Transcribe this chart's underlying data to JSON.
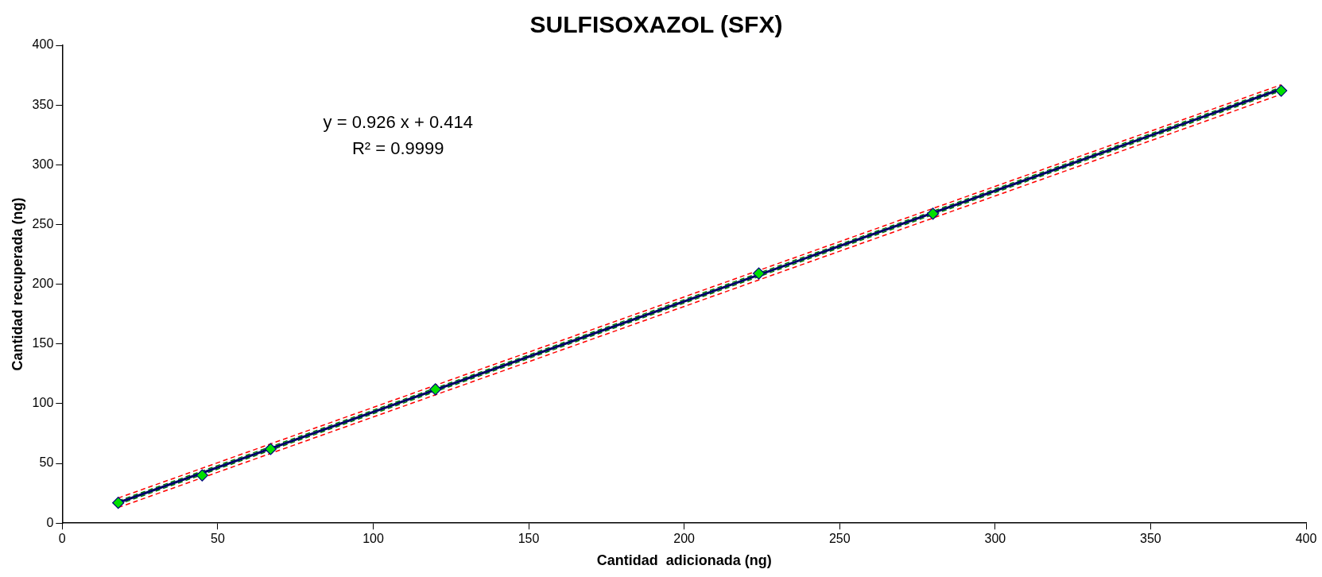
{
  "chart_data": {
    "type": "scatter",
    "title": "SULFISOXAZOL (SFX)",
    "xlabel": "Cantidad  adicionada (ng)",
    "ylabel": "Cantidad recuperada (ng)",
    "xlim": [
      0,
      400
    ],
    "xticks": [
      0,
      50,
      100,
      150,
      200,
      250,
      300,
      350,
      400
    ],
    "ylim": [
      0,
      400
    ],
    "yticks": [
      0,
      50,
      100,
      150,
      200,
      250,
      300,
      350,
      400
    ],
    "grid": false,
    "legend": false,
    "annotations": [
      "y = 0.926 x + 0.414",
      "R² = 0.9999"
    ],
    "series": [
      {
        "type": "scatter",
        "color": "#00e000",
        "marker": "diamond",
        "x": [
          18,
          45,
          67,
          120,
          224,
          280,
          392
        ],
        "values": [
          17,
          40,
          62,
          112,
          209,
          259,
          362
        ]
      },
      {
        "type": "line",
        "color": "#000066",
        "marker": "none",
        "line_style": "solid",
        "x": [
          18,
          392
        ],
        "values": [
          17.1,
          363.4
        ]
      },
      {
        "type": "line",
        "color": "#008000",
        "marker": "none",
        "line_style": "dashed",
        "x": [
          18,
          392
        ],
        "values": [
          18.6,
          364.9
        ]
      },
      {
        "type": "line",
        "color": "#008000",
        "marker": "none",
        "line_style": "dashed",
        "x": [
          18,
          392
        ],
        "values": [
          15.6,
          361.9
        ]
      },
      {
        "type": "line",
        "color": "#ff0000",
        "marker": "none",
        "line_style": "dashed",
        "x": [
          18,
          392
        ],
        "values": [
          21,
          367
        ]
      },
      {
        "type": "line",
        "color": "#ff0000",
        "marker": "none",
        "line_style": "dashed",
        "x": [
          18,
          392
        ],
        "values": [
          13,
          359
        ]
      }
    ]
  }
}
